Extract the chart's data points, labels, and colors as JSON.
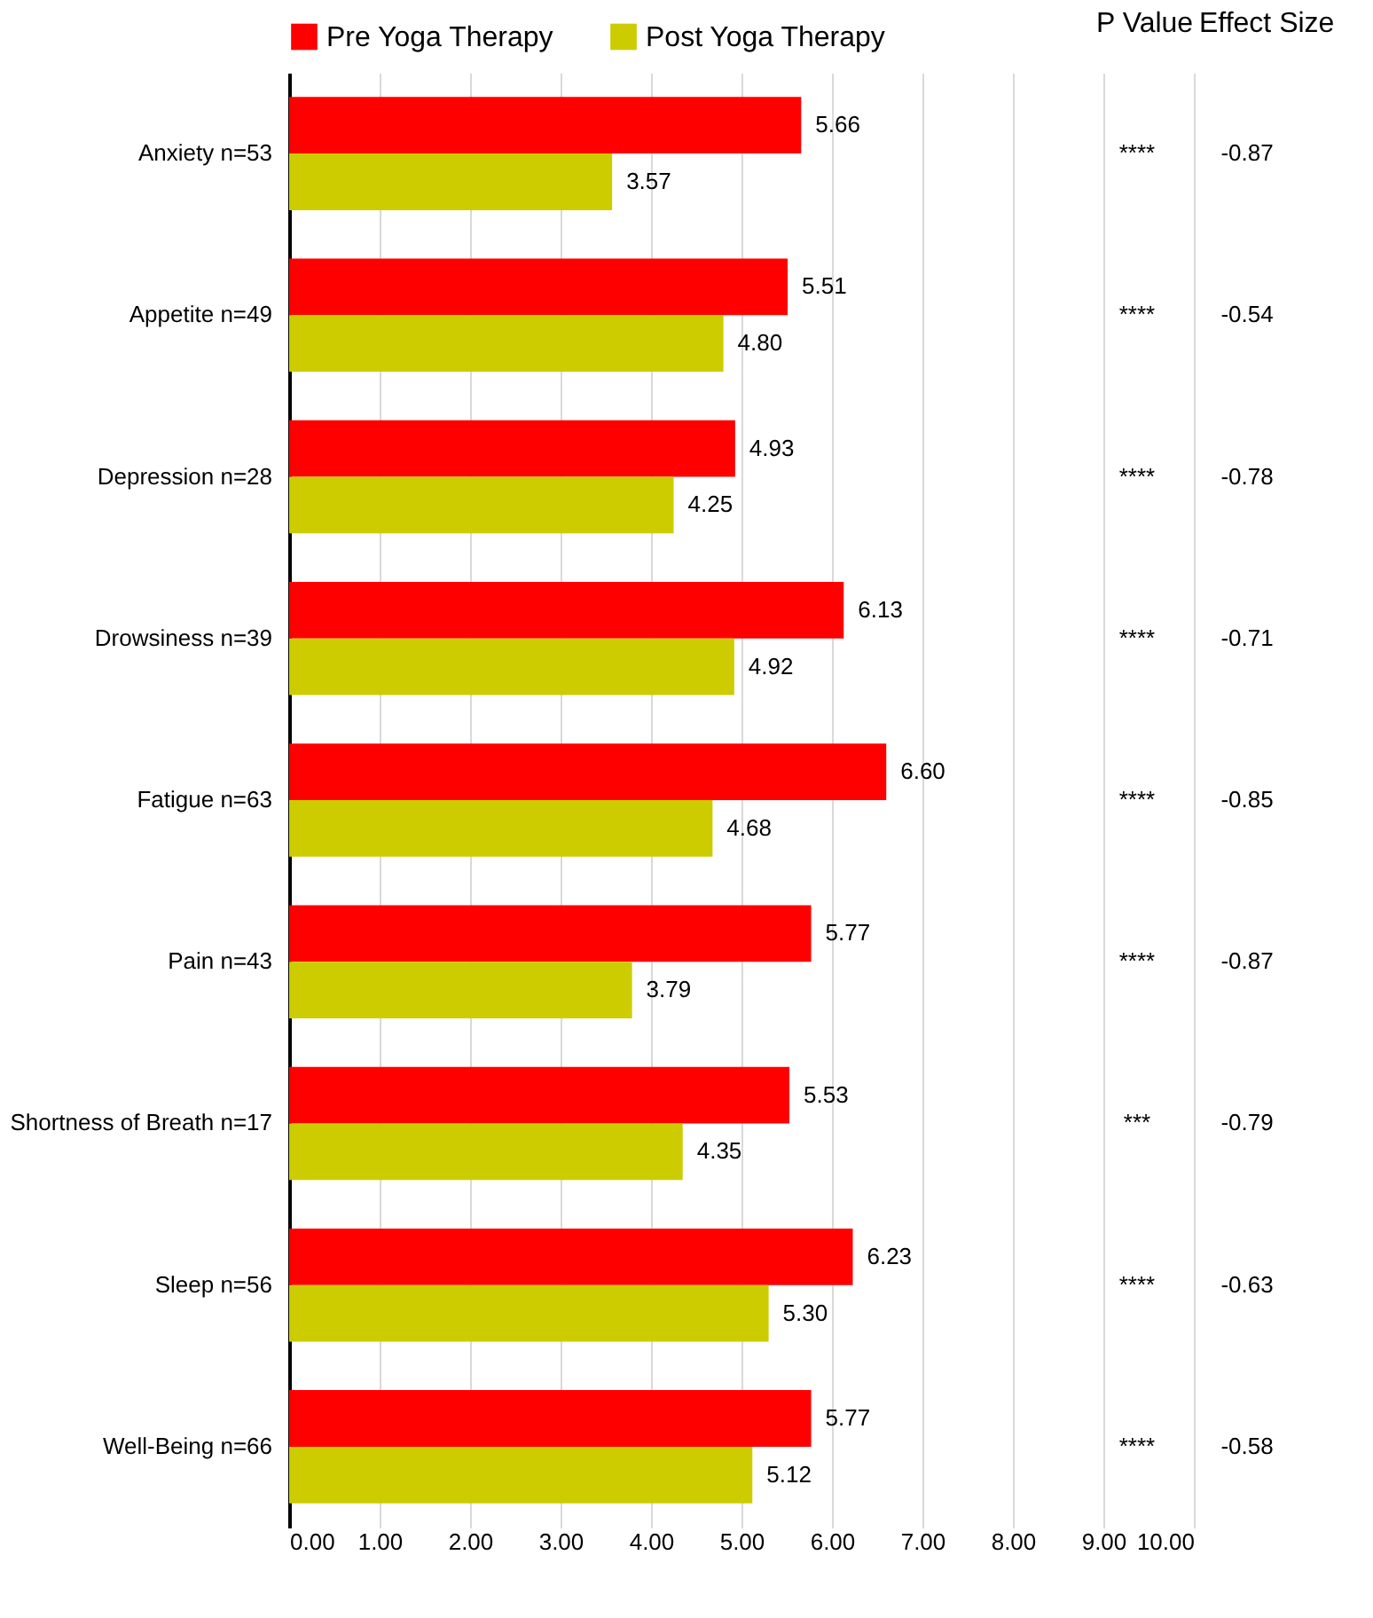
{
  "chart_data": {
    "type": "bar",
    "orientation": "horizontal",
    "categories": [
      "Anxiety n=53",
      "Appetite n=49",
      "Depression n=28",
      "Drowsiness n=39",
      "Fatigue n=63",
      "Pain n=43",
      "Shortness of Breath n=17",
      "Sleep n=56",
      "Well-Being n=66"
    ],
    "series": [
      {
        "name": "Pre Yoga Therapy",
        "color": "#ff0000",
        "values": [
          5.66,
          5.51,
          4.93,
          6.13,
          6.6,
          5.77,
          5.53,
          6.23,
          5.77
        ],
        "value_labels": [
          "5.66",
          "5.51",
          "4.93",
          "6.13",
          "6.60",
          "5.77",
          "5.53",
          "6.23",
          "5.77"
        ]
      },
      {
        "name": "Post Yoga Therapy",
        "color": "#cccc00",
        "values": [
          3.57,
          4.8,
          4.25,
          4.92,
          4.68,
          3.79,
          4.35,
          5.3,
          5.12
        ],
        "value_labels": [
          "3.57",
          "4.80",
          "4.25",
          "4.92",
          "4.68",
          "3.79",
          "4.35",
          "5.30",
          "5.12"
        ]
      }
    ],
    "xlim": [
      0,
      10
    ],
    "xticks": [
      {
        "value": 0,
        "label": "0.00"
      },
      {
        "value": 1,
        "label": "1.00"
      },
      {
        "value": 2,
        "label": "2.00"
      },
      {
        "value": 3,
        "label": "3.00"
      },
      {
        "value": 4,
        "label": "4.00"
      },
      {
        "value": 5,
        "label": "5.00"
      },
      {
        "value": 6,
        "label": "6.00"
      },
      {
        "value": 7,
        "label": "7.00"
      },
      {
        "value": 8,
        "label": "8.00"
      },
      {
        "value": 9,
        "label": "9.00"
      },
      {
        "value": 10,
        "label": "10.00"
      }
    ],
    "grid": "x",
    "legend": "top",
    "annotations": [
      "P Value",
      "Effect Size",
      "****",
      "-0.87",
      "****",
      "-0.54",
      "****",
      "-0.78",
      "****",
      "-0.71",
      "****",
      "-0.85",
      "****",
      "-0.87",
      "***",
      "-0.79",
      "****",
      "-0.63",
      "****",
      "-0.58"
    ]
  }
}
